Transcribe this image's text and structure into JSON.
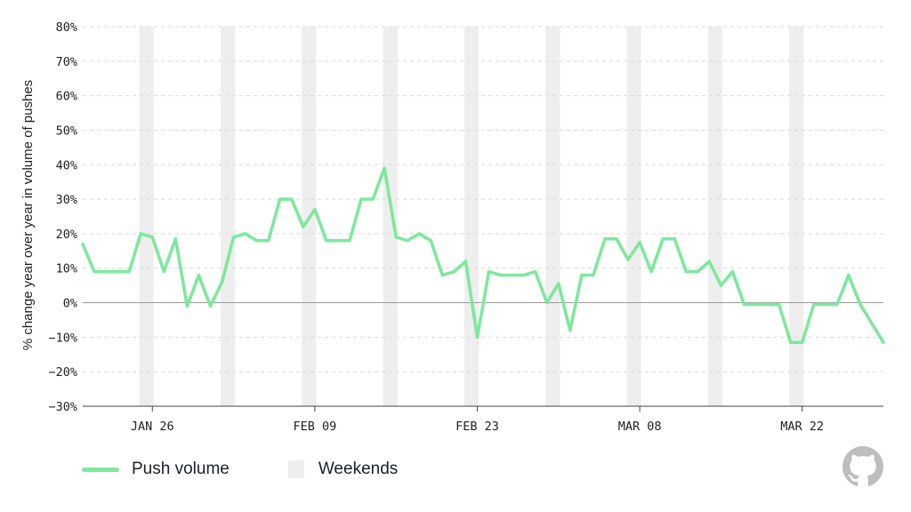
{
  "chart_data": {
    "type": "line",
    "ylabel": "% change year over year in volume of pushes",
    "xlabel": "",
    "yticks": [
      80,
      70,
      60,
      50,
      40,
      30,
      20,
      10,
      0,
      -10,
      -20,
      -30
    ],
    "ytick_labels": [
      "80%",
      "70%",
      "60%",
      "50%",
      "40%",
      "30%",
      "20%",
      "10%",
      "0%",
      "−10%",
      "−20%",
      "−30%"
    ],
    "ylim": [
      -30,
      80
    ],
    "xtick_labels": [
      "JAN 26",
      "FEB 09",
      "FEB 23",
      "MAR 08",
      "MAR 22"
    ],
    "xtick_days": [
      7,
      21,
      35,
      49,
      63
    ],
    "day_range": [
      1,
      70
    ],
    "weekend_days": [
      [
        6,
        7
      ],
      [
        13,
        14
      ],
      [
        20,
        21
      ],
      [
        27,
        28
      ],
      [
        34,
        35
      ],
      [
        41,
        42
      ],
      [
        48,
        49
      ],
      [
        55,
        56
      ],
      [
        62,
        63
      ]
    ],
    "grid": true,
    "series": [
      {
        "name": "Push volume",
        "color": "#7ee89d",
        "values": [
          17,
          9,
          9,
          9,
          9,
          20,
          19,
          9,
          18.5,
          -1,
          8,
          -1,
          6,
          19,
          20,
          18,
          18,
          30,
          30,
          22,
          27,
          18,
          18,
          18,
          30,
          30,
          39,
          19,
          18,
          20,
          18,
          8,
          9,
          12,
          -10,
          9,
          8,
          8,
          8,
          9,
          0,
          5.5,
          -8,
          8,
          8,
          18.5,
          18.5,
          12.5,
          17.5,
          9,
          18.5,
          18.5,
          9,
          9,
          12,
          5,
          9,
          -0.5,
          -0.5,
          -0.5,
          -0.5,
          -11.5,
          -11.5,
          -0.5,
          -0.5,
          -0.5,
          8,
          -0.5,
          -6,
          -11.5
        ]
      }
    ]
  },
  "legend": {
    "line_label": "Push volume",
    "weekends_label": "Weekends"
  },
  "colors": {
    "series": "#7ee89d",
    "weekend": "#eeeeee",
    "grid": "#d9d9d9",
    "zero_line": "#9a9a9a",
    "axis": "#444444",
    "logo": "#bdbdbd"
  },
  "icons": {
    "brand": "github-octocat-icon"
  }
}
